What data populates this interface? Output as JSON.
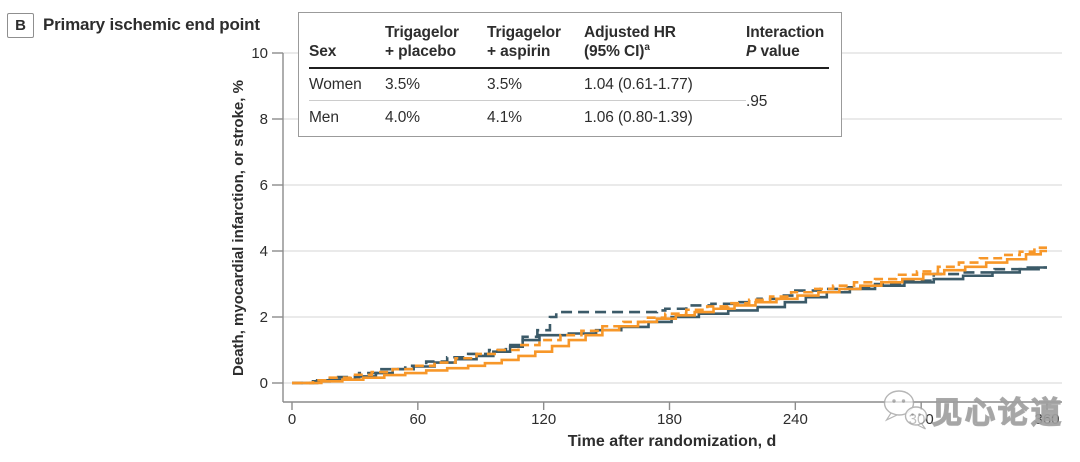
{
  "panel": {
    "label": "B",
    "title": "Primary ischemic end point"
  },
  "table": {
    "headers": [
      {
        "line1": "",
        "line2": "Sex"
      },
      {
        "line1": "Trigagelor",
        "line2": "+ placebo"
      },
      {
        "line1": "Trigagelor",
        "line2": "+ aspirin"
      },
      {
        "line1": "Adjusted HR",
        "line2": "(95% CI)",
        "sup": "a"
      },
      {
        "line1": "Interaction",
        "line2_p": "P",
        "line2_rest": " value"
      }
    ],
    "rows": [
      {
        "sex": "Women",
        "placebo": "3.5%",
        "aspirin": "3.5%",
        "hr": "1.04 (0.61-1.77)"
      },
      {
        "sex": "Men",
        "placebo": "4.0%",
        "aspirin": "4.1%",
        "hr": "1.06 (0.80-1.39)"
      }
    ],
    "interaction_p": ".95"
  },
  "chart_data": {
    "type": "line",
    "subtype": "step-cumulative-incidence",
    "title": "Primary ischemic end point",
    "xlabel": "Time after randomization, d",
    "ylabel": "Death, myocardial infarction, or stroke, %",
    "xlim": [
      0,
      360
    ],
    "ylim": [
      0,
      10
    ],
    "xticks": [
      0,
      60,
      120,
      180,
      240,
      300,
      360
    ],
    "yticks": [
      0,
      2,
      4,
      6,
      8,
      10
    ],
    "grid": true,
    "legend_position": "none",
    "series": [
      {
        "name": "Women (solid)",
        "final_value_pct": 3.5,
        "color": "#3b5a68",
        "style": "solid",
        "points": [
          [
            0,
            0
          ],
          [
            10,
            0.05
          ],
          [
            18,
            0.1
          ],
          [
            30,
            0.2
          ],
          [
            40,
            0.3
          ],
          [
            48,
            0.42
          ],
          [
            58,
            0.5
          ],
          [
            68,
            0.62
          ],
          [
            78,
            0.72
          ],
          [
            88,
            0.82
          ],
          [
            96,
            0.95
          ],
          [
            104,
            1.1
          ],
          [
            110,
            1.3
          ],
          [
            118,
            1.45
          ],
          [
            132,
            1.5
          ],
          [
            145,
            1.6
          ],
          [
            157,
            1.7
          ],
          [
            170,
            1.85
          ],
          [
            181,
            2.0
          ],
          [
            194,
            2.1
          ],
          [
            208,
            2.2
          ],
          [
            222,
            2.3
          ],
          [
            235,
            2.45
          ],
          [
            245,
            2.6
          ],
          [
            255,
            2.75
          ],
          [
            266,
            2.85
          ],
          [
            278,
            2.95
          ],
          [
            292,
            3.05
          ],
          [
            306,
            3.15
          ],
          [
            320,
            3.25
          ],
          [
            334,
            3.35
          ],
          [
            347,
            3.45
          ],
          [
            356,
            3.5
          ],
          [
            360,
            3.5
          ]
        ]
      },
      {
        "name": "Women (dashed)",
        "final_value_pct": 3.5,
        "color": "#3b5a68",
        "style": "dashed",
        "points": [
          [
            0,
            0
          ],
          [
            12,
            0.08
          ],
          [
            22,
            0.18
          ],
          [
            32,
            0.3
          ],
          [
            42,
            0.42
          ],
          [
            54,
            0.52
          ],
          [
            64,
            0.65
          ],
          [
            74,
            0.78
          ],
          [
            84,
            0.88
          ],
          [
            94,
            1.0
          ],
          [
            102,
            1.15
          ],
          [
            110,
            1.4
          ],
          [
            117,
            1.6
          ],
          [
            123,
            2.0
          ],
          [
            126,
            2.15
          ],
          [
            174,
            2.2
          ],
          [
            178,
            2.25
          ],
          [
            188,
            2.35
          ],
          [
            200,
            2.4
          ],
          [
            212,
            2.45
          ],
          [
            222,
            2.55
          ],
          [
            232,
            2.65
          ],
          [
            240,
            2.8
          ],
          [
            252,
            2.85
          ],
          [
            265,
            2.9
          ],
          [
            278,
            3.0
          ],
          [
            292,
            3.1
          ],
          [
            306,
            3.3
          ],
          [
            320,
            3.35
          ],
          [
            335,
            3.45
          ],
          [
            350,
            3.5
          ],
          [
            360,
            3.5
          ]
        ]
      },
      {
        "name": "Men (solid)",
        "final_value_pct": 4.0,
        "color": "#f79729",
        "style": "solid",
        "points": [
          [
            0,
            0
          ],
          [
            14,
            0.05
          ],
          [
            24,
            0.1
          ],
          [
            34,
            0.16
          ],
          [
            44,
            0.24
          ],
          [
            54,
            0.3
          ],
          [
            64,
            0.38
          ],
          [
            74,
            0.45
          ],
          [
            84,
            0.52
          ],
          [
            92,
            0.6
          ],
          [
            100,
            0.7
          ],
          [
            108,
            0.82
          ],
          [
            116,
            0.95
          ],
          [
            124,
            1.12
          ],
          [
            132,
            1.3
          ],
          [
            140,
            1.45
          ],
          [
            148,
            1.6
          ],
          [
            156,
            1.72
          ],
          [
            165,
            1.85
          ],
          [
            174,
            1.95
          ],
          [
            183,
            2.05
          ],
          [
            192,
            2.15
          ],
          [
            201,
            2.25
          ],
          [
            211,
            2.35
          ],
          [
            221,
            2.45
          ],
          [
            231,
            2.55
          ],
          [
            241,
            2.65
          ],
          [
            251,
            2.75
          ],
          [
            261,
            2.85
          ],
          [
            271,
            2.95
          ],
          [
            281,
            3.05
          ],
          [
            291,
            3.15
          ],
          [
            301,
            3.3
          ],
          [
            311,
            3.42
          ],
          [
            321,
            3.52
          ],
          [
            331,
            3.65
          ],
          [
            341,
            3.75
          ],
          [
            350,
            3.9
          ],
          [
            357,
            4.0
          ],
          [
            360,
            4.0
          ]
        ]
      },
      {
        "name": "Men (dashed)",
        "final_value_pct": 4.1,
        "color": "#f79729",
        "style": "dashed",
        "points": [
          [
            0,
            0
          ],
          [
            10,
            0.08
          ],
          [
            18,
            0.16
          ],
          [
            28,
            0.25
          ],
          [
            38,
            0.33
          ],
          [
            48,
            0.42
          ],
          [
            58,
            0.52
          ],
          [
            68,
            0.62
          ],
          [
            78,
            0.75
          ],
          [
            88,
            0.88
          ],
          [
            98,
            1.0
          ],
          [
            108,
            1.15
          ],
          [
            118,
            1.3
          ],
          [
            128,
            1.45
          ],
          [
            138,
            1.58
          ],
          [
            148,
            1.72
          ],
          [
            158,
            1.85
          ],
          [
            168,
            1.98
          ],
          [
            178,
            2.1
          ],
          [
            188,
            2.22
          ],
          [
            198,
            2.32
          ],
          [
            208,
            2.42
          ],
          [
            218,
            2.52
          ],
          [
            228,
            2.62
          ],
          [
            238,
            2.75
          ],
          [
            248,
            2.85
          ],
          [
            258,
            2.95
          ],
          [
            268,
            3.05
          ],
          [
            278,
            3.15
          ],
          [
            288,
            3.28
          ],
          [
            298,
            3.38
          ],
          [
            308,
            3.52
          ],
          [
            318,
            3.65
          ],
          [
            328,
            3.78
          ],
          [
            338,
            3.88
          ],
          [
            347,
            3.98
          ],
          [
            354,
            4.1
          ],
          [
            360,
            4.1
          ]
        ]
      }
    ]
  },
  "watermark": {
    "text": "见心论道",
    "icon": "wechat-chat-bubbles-icon"
  },
  "colors": {
    "teal": "#3b5a68",
    "orange": "#f79729",
    "grid": "#dedede",
    "axis": "#8c8c8c",
    "text": "#2d2d2d",
    "table_border": "#9b9b9b",
    "header_rule": "#1f1f1f",
    "row_rule": "#cccccc"
  }
}
